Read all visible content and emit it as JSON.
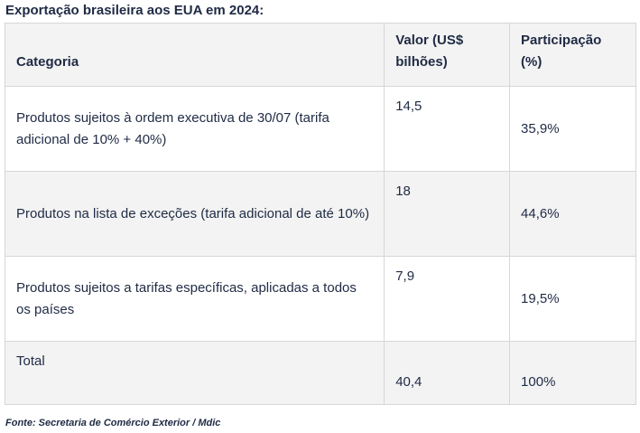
{
  "title": "Exportação brasileira aos EUA em 2024:",
  "table": {
    "headers": [
      "Categoria",
      "Valor (US$ bilhões)",
      "Participação (%)"
    ],
    "rows": [
      {
        "category": "Produtos sujeitos à ordem executiva de 30/07 (tarifa adicional de 10% + 40%)",
        "value": "14,5",
        "share": "35,9%"
      },
      {
        "category": "Produtos na lista de exceções (tarifa adicional de até 10%)",
        "value": "18",
        "share": "44,6%"
      },
      {
        "category": "Produtos sujeitos a tarifas específicas, aplicadas a todos os países",
        "value": "7,9",
        "share": "19,5%"
      }
    ],
    "total": {
      "label": "Total",
      "value": "40,4",
      "share": "100%"
    }
  },
  "source": "Fonte: Secretaria de Comércio Exterior / Mdic"
}
